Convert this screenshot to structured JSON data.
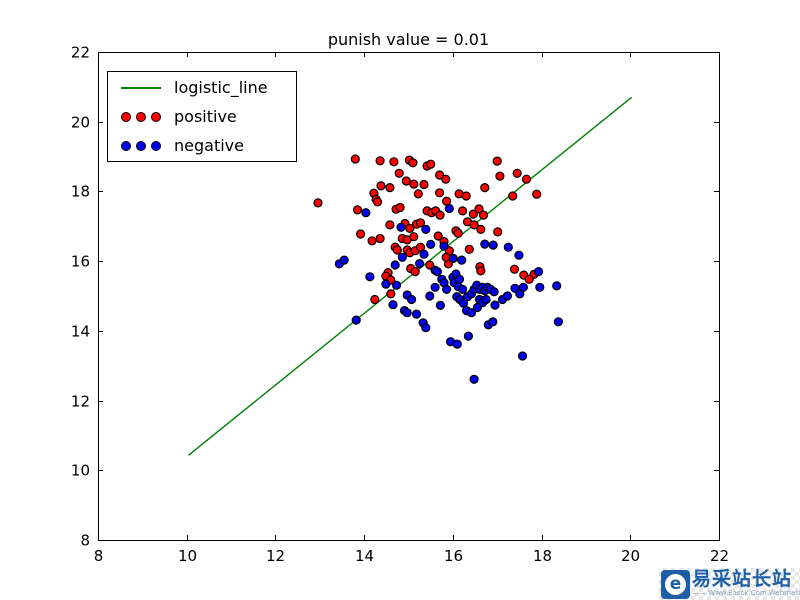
{
  "chart_data": {
    "type": "scatter",
    "title": "punish value = 0.01",
    "xlabel": "",
    "ylabel": "",
    "xlim": [
      8,
      22
    ],
    "ylim": [
      8,
      22
    ],
    "xticks": [
      8,
      10,
      12,
      14,
      16,
      18,
      20,
      22
    ],
    "yticks": [
      8,
      10,
      12,
      14,
      16,
      18,
      20,
      22
    ],
    "grid": false,
    "legend": {
      "position": "upper left",
      "entries": [
        {
          "label": "logistic_line",
          "type": "line",
          "color": "#008000"
        },
        {
          "label": "positive",
          "type": "scatter",
          "color": "#ff0000"
        },
        {
          "label": "negative",
          "type": "scatter",
          "color": "#0000ee"
        }
      ]
    },
    "line": {
      "name": "logistic_line",
      "color": "#008000",
      "x": [
        10.04,
        20.03
      ],
      "y": [
        10.43,
        20.7
      ]
    },
    "series": [
      {
        "name": "positive",
        "marker": "circle",
        "color": "#ff0000",
        "edge_color": "#000000",
        "points": [
          [
            13.8,
            18.93
          ],
          [
            14.36,
            18.88
          ],
          [
            14.67,
            18.85
          ],
          [
            15.02,
            18.9
          ],
          [
            15.1,
            18.82
          ],
          [
            15.42,
            18.73
          ],
          [
            15.5,
            18.78
          ],
          [
            14.79,
            18.52
          ],
          [
            15.7,
            18.47
          ],
          [
            15.84,
            18.35
          ],
          [
            17.0,
            18.87
          ],
          [
            17.06,
            18.44
          ],
          [
            17.45,
            18.52
          ],
          [
            17.66,
            18.35
          ],
          [
            15.12,
            18.21
          ],
          [
            14.38,
            18.16
          ],
          [
            14.58,
            18.11
          ],
          [
            14.95,
            18.3
          ],
          [
            15.35,
            18.2
          ],
          [
            14.22,
            17.95
          ],
          [
            14.27,
            17.77
          ],
          [
            14.3,
            17.7
          ],
          [
            15.22,
            17.93
          ],
          [
            15.7,
            17.96
          ],
          [
            15.86,
            17.72
          ],
          [
            16.14,
            17.93
          ],
          [
            16.3,
            17.87
          ],
          [
            16.72,
            18.11
          ],
          [
            17.35,
            17.87
          ],
          [
            17.89,
            17.92
          ],
          [
            13.85,
            17.47
          ],
          [
            12.96,
            17.67
          ],
          [
            13.92,
            16.78
          ],
          [
            14.18,
            16.58
          ],
          [
            14.36,
            16.65
          ],
          [
            14.58,
            17.04
          ],
          [
            14.72,
            17.49
          ],
          [
            14.81,
            17.54
          ],
          [
            14.92,
            17.08
          ],
          [
            14.86,
            16.65
          ],
          [
            14.97,
            16.61
          ],
          [
            15.12,
            16.7
          ],
          [
            15.03,
            16.94
          ],
          [
            15.18,
            17.06
          ],
          [
            15.27,
            17.1
          ],
          [
            15.42,
            17.44
          ],
          [
            15.52,
            17.39
          ],
          [
            15.61,
            17.44
          ],
          [
            15.71,
            17.32
          ],
          [
            15.67,
            16.72
          ],
          [
            15.8,
            16.56
          ],
          [
            16.07,
            16.87
          ],
          [
            16.12,
            16.8
          ],
          [
            16.22,
            17.44
          ],
          [
            16.33,
            17.13
          ],
          [
            16.46,
            17.35
          ],
          [
            16.48,
            17.04
          ],
          [
            16.59,
            17.5
          ],
          [
            16.63,
            16.91
          ],
          [
            16.69,
            17.32
          ],
          [
            17.01,
            16.84
          ],
          [
            16.37,
            16.34
          ],
          [
            15.9,
            15.92
          ],
          [
            17.39,
            15.77
          ],
          [
            17.83,
            15.62
          ],
          [
            14.7,
            16.4
          ],
          [
            14.75,
            16.32
          ],
          [
            14.97,
            16.32
          ],
          [
            15.03,
            16.24
          ],
          [
            15.15,
            16.3
          ],
          [
            15.27,
            16.4
          ],
          [
            15.92,
            16.3
          ],
          [
            15.48,
            15.89
          ],
          [
            15.85,
            16.11
          ],
          [
            15.05,
            15.79
          ],
          [
            15.15,
            15.7
          ],
          [
            14.54,
            15.67
          ],
          [
            14.49,
            15.57
          ],
          [
            14.6,
            15.46
          ],
          [
            14.6,
            15.06
          ],
          [
            14.24,
            14.9
          ],
          [
            16.61,
            15.84
          ],
          [
            16.63,
            15.72
          ],
          [
            17.6,
            15.6
          ],
          [
            17.72,
            15.48
          ]
        ]
      },
      {
        "name": "negative",
        "marker": "circle",
        "color": "#0000ee",
        "edge_color": "#000000",
        "points": [
          [
            14.04,
            17.39
          ],
          [
            15.92,
            17.51
          ],
          [
            15.39,
            16.91
          ],
          [
            14.83,
            16.97
          ],
          [
            14.86,
            16.11
          ],
          [
            14.7,
            15.89
          ],
          [
            13.44,
            15.92
          ],
          [
            13.55,
            16.03
          ],
          [
            14.13,
            15.55
          ],
          [
            14.49,
            15.34
          ],
          [
            14.73,
            15.31
          ],
          [
            14.97,
            15.03
          ],
          [
            15.07,
            14.9
          ],
          [
            14.91,
            14.58
          ],
          [
            14.97,
            14.52
          ],
          [
            15.18,
            14.48
          ],
          [
            15.33,
            14.23
          ],
          [
            15.39,
            14.09
          ],
          [
            15.48,
            15.0
          ],
          [
            15.6,
            15.25
          ],
          [
            15.6,
            15.74
          ],
          [
            15.65,
            15.7
          ],
          [
            15.75,
            15.48
          ],
          [
            15.8,
            15.38
          ],
          [
            15.86,
            15.19
          ],
          [
            16.0,
            15.54
          ],
          [
            16.03,
            15.38
          ],
          [
            16.12,
            15.27
          ],
          [
            16.22,
            15.19
          ],
          [
            16.09,
            14.98
          ],
          [
            16.16,
            14.9
          ],
          [
            16.24,
            14.79
          ],
          [
            16.33,
            14.98
          ],
          [
            16.42,
            15.06
          ],
          [
            16.48,
            15.19
          ],
          [
            16.54,
            15.31
          ],
          [
            16.6,
            15.19
          ],
          [
            16.67,
            15.25
          ],
          [
            16.72,
            15.15
          ],
          [
            16.78,
            15.25
          ],
          [
            16.85,
            15.19
          ],
          [
            16.93,
            15.12
          ],
          [
            16.6,
            14.9
          ],
          [
            16.67,
            14.81
          ],
          [
            16.75,
            14.9
          ],
          [
            16.31,
            14.58
          ],
          [
            16.42,
            14.52
          ],
          [
            16.55,
            14.67
          ],
          [
            16.95,
            14.74
          ],
          [
            17.12,
            14.9
          ],
          [
            16.35,
            13.85
          ],
          [
            16.8,
            14.17
          ],
          [
            16.9,
            14.26
          ],
          [
            17.23,
            15.0
          ],
          [
            17.4,
            15.22
          ],
          [
            17.51,
            15.06
          ],
          [
            17.59,
            15.25
          ],
          [
            17.93,
            15.7
          ],
          [
            17.96,
            15.25
          ],
          [
            18.34,
            15.29
          ],
          [
            18.38,
            14.26
          ],
          [
            17.57,
            13.28
          ],
          [
            16.48,
            12.61
          ],
          [
            15.95,
            13.69
          ],
          [
            16.1,
            13.62
          ],
          [
            16.72,
            16.49
          ],
          [
            16.91,
            16.46
          ],
          [
            17.25,
            16.4
          ],
          [
            17.49,
            16.17
          ],
          [
            15.8,
            16.43
          ],
          [
            16.01,
            16.08
          ],
          [
            16.2,
            16.03
          ],
          [
            16.07,
            15.63
          ],
          [
            16.15,
            15.48
          ],
          [
            15.25,
            15.93
          ],
          [
            15.35,
            16.2
          ],
          [
            15.5,
            16.48
          ],
          [
            15.72,
            14.73
          ],
          [
            14.65,
            14.75
          ],
          [
            13.82,
            14.31
          ]
        ]
      }
    ]
  },
  "watermark": {
    "title": "易采站长站",
    "subtitle": "—— Www.Easck.Com Webmaster",
    "logo_glyph": "e",
    "brand_color": "#1b5ea6"
  }
}
